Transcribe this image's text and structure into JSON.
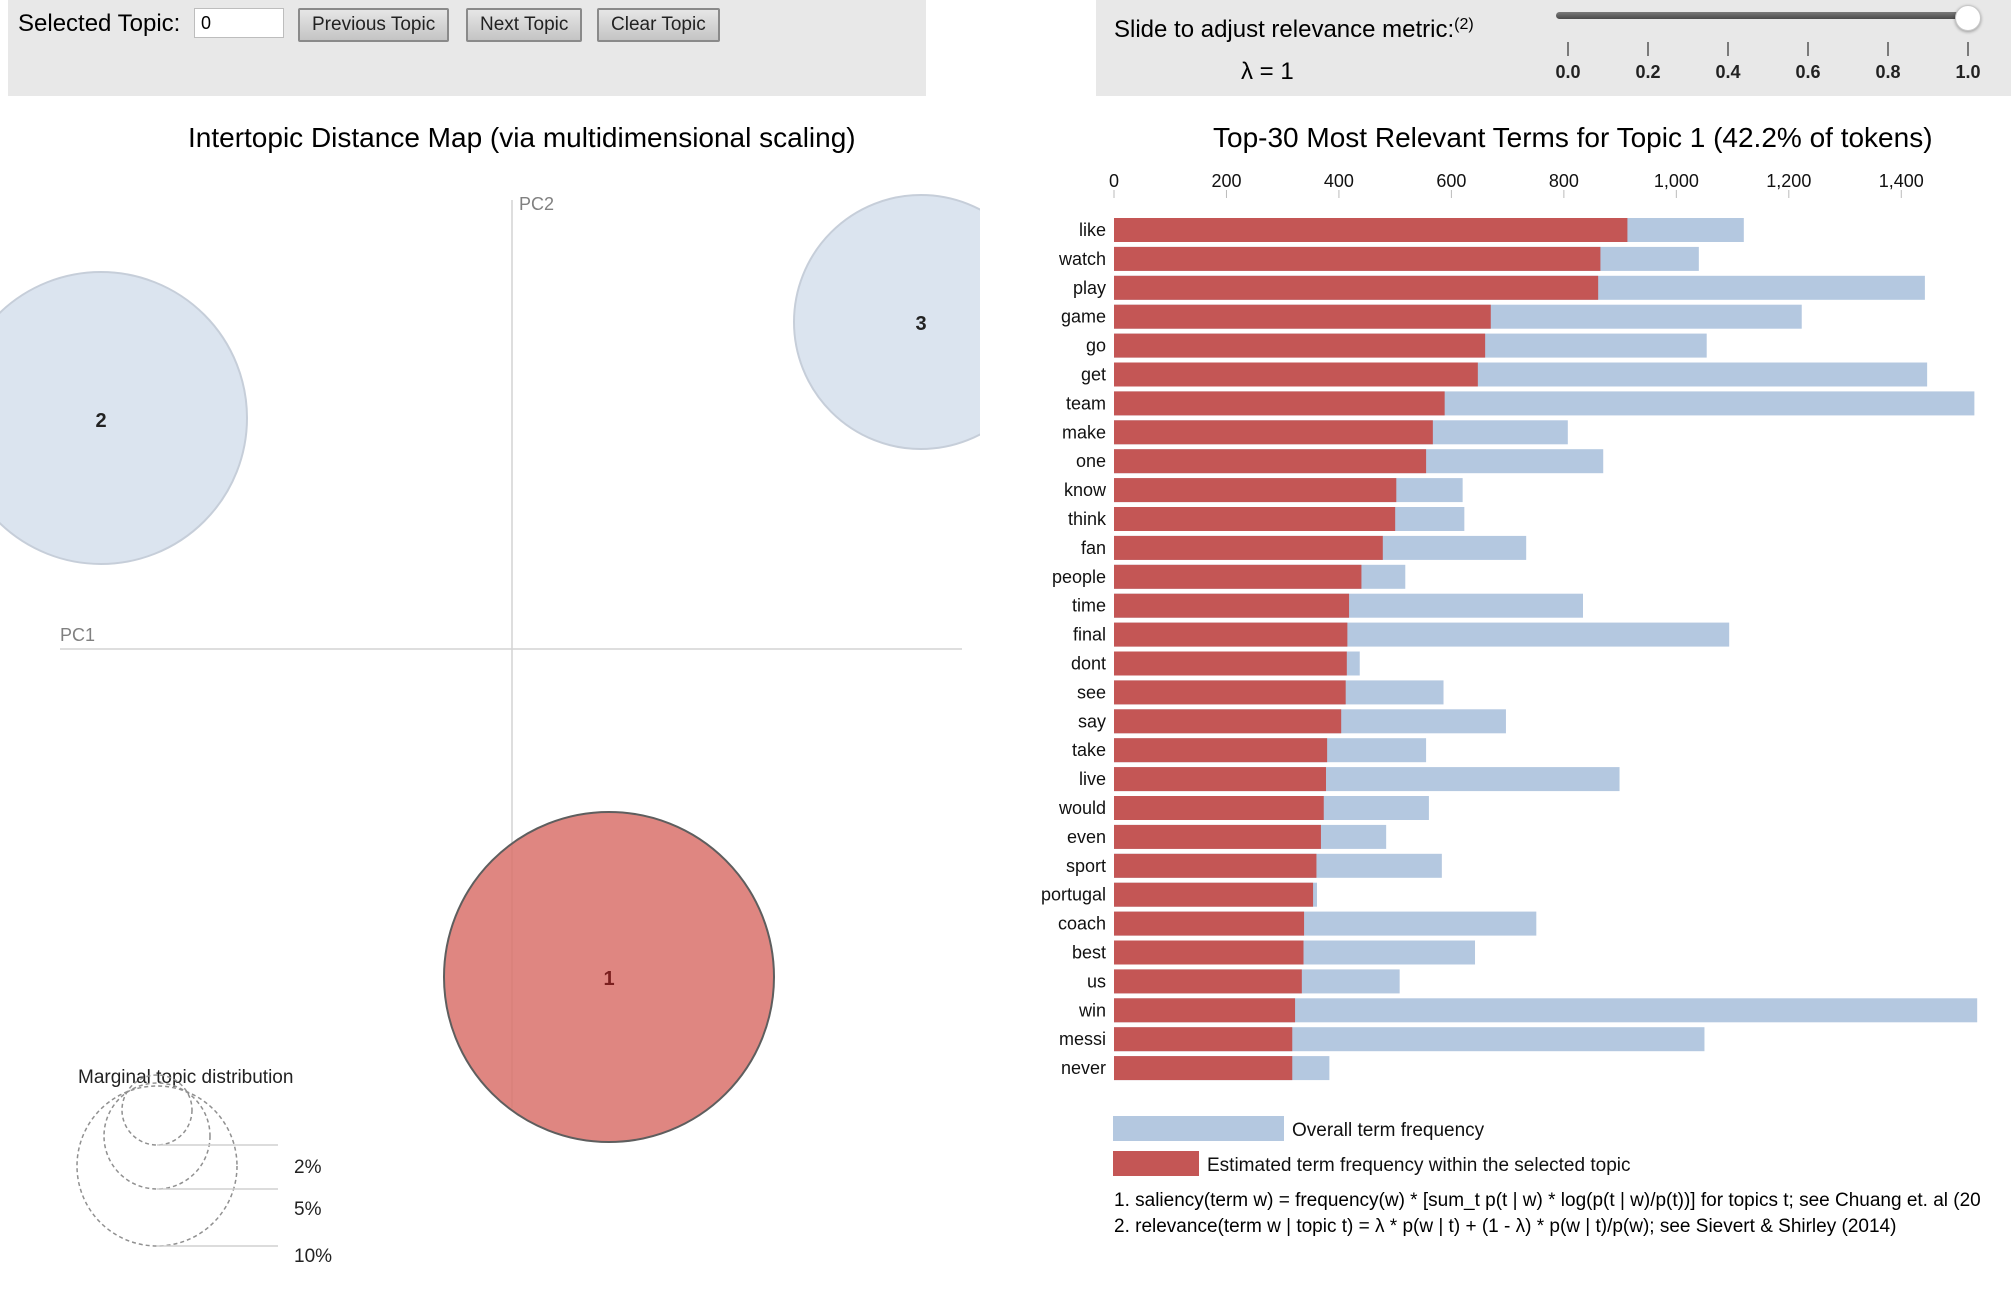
{
  "controls": {
    "selected_topic_label": "Selected Topic:",
    "selected_topic_value": "0",
    "prev_button": "Previous Topic",
    "next_button": "Next Topic",
    "clear_button": "Clear Topic"
  },
  "relevance": {
    "label": "Slide to adjust relevance metric:",
    "note": "(2)",
    "lambda_text": "λ = 1",
    "lambda_value": 1.0,
    "ticks": [
      "0.0",
      "0.2",
      "0.4",
      "0.6",
      "0.8",
      "1.0"
    ]
  },
  "map": {
    "title": "Intertopic Distance Map (via multidimensional scaling)",
    "x_axis_label": "PC1",
    "y_axis_label": "PC2",
    "topics": [
      {
        "id": "1",
        "selected": true
      },
      {
        "id": "2",
        "selected": false
      },
      {
        "id": "3",
        "selected": false
      }
    ],
    "marginal": {
      "title": "Marginal topic distribution",
      "labels": [
        "2%",
        "5%",
        "10%"
      ]
    }
  },
  "terms": {
    "title": "Top-30 Most Relevant Terms for Topic 1 (42.2% of tokens)",
    "legend_overall": "Overall term frequency",
    "legend_topic": "Estimated term frequency within the selected topic",
    "footnote_1": "1. saliency(term w) = frequency(w) * [sum_t p(t | w) * log(p(t | w)/p(t))] for topics t; see Chuang et. al (20",
    "footnote_2": "2. relevance(term w | topic t) = λ * p(w | t) + (1 - λ) * p(w | t)/p(w); see Sievert & Shirley (2014)"
  },
  "chart_data": {
    "type": "bar",
    "orientation": "horizontal",
    "title": "Top-30 Most Relevant Terms for Topic 1 (42.2% of tokens)",
    "x_ticks": [
      "0",
      "200",
      "400",
      "600",
      "800",
      "1,000",
      "1,200",
      "1,400"
    ],
    "xlim": [
      0,
      1540
    ],
    "categories": [
      "like",
      "watch",
      "play",
      "game",
      "go",
      "get",
      "team",
      "make",
      "one",
      "know",
      "think",
      "fan",
      "people",
      "time",
      "final",
      "dont",
      "see",
      "say",
      "take",
      "live",
      "would",
      "even",
      "sport",
      "portugal",
      "coach",
      "best",
      "us",
      "win",
      "messi",
      "never"
    ],
    "series": [
      {
        "name": "Overall term frequency",
        "color": "#b4c8e0",
        "values": [
          1120,
          1040,
          1442,
          1223,
          1054,
          1446,
          1530,
          807,
          870,
          620,
          623,
          733,
          518,
          834,
          1094,
          437,
          586,
          697,
          555,
          899,
          560,
          484,
          583,
          361,
          751,
          642,
          508,
          1535,
          1050,
          383
        ]
      },
      {
        "name": "Estimated term frequency within the selected topic",
        "color": "#c45655",
        "values": [
          913,
          865,
          861,
          670,
          660,
          647,
          588,
          567,
          555,
          502,
          500,
          478,
          440,
          418,
          415,
          414,
          412,
          404,
          379,
          377,
          373,
          368,
          360,
          354,
          338,
          337,
          334,
          322,
          317,
          317
        ]
      }
    ]
  },
  "colors": {
    "selected_topic": "#d9716b",
    "unselected_topic": "#dae3ef",
    "overall_bar": "#b4c8e0",
    "topic_bar": "#c45655",
    "panel_bg": "#e8e8e8"
  }
}
